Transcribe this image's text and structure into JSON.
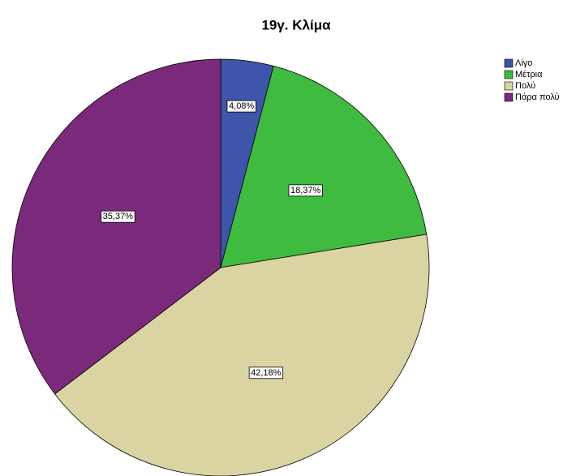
{
  "chart_data": {
    "type": "pie",
    "title": "19γ. Κλίμα",
    "categories": [
      "Λίγο",
      "Μέτρια",
      "Πολύ",
      "Πάρα πολύ"
    ],
    "values": [
      4.08,
      18.37,
      42.18,
      35.37
    ],
    "value_labels": [
      "4,08%",
      "18,37%",
      "42,18%",
      "35,37%"
    ],
    "colors": [
      "#3d56ab",
      "#3fbb3f",
      "#d9d4a2",
      "#7b2a7b"
    ],
    "legend": "upper right"
  }
}
